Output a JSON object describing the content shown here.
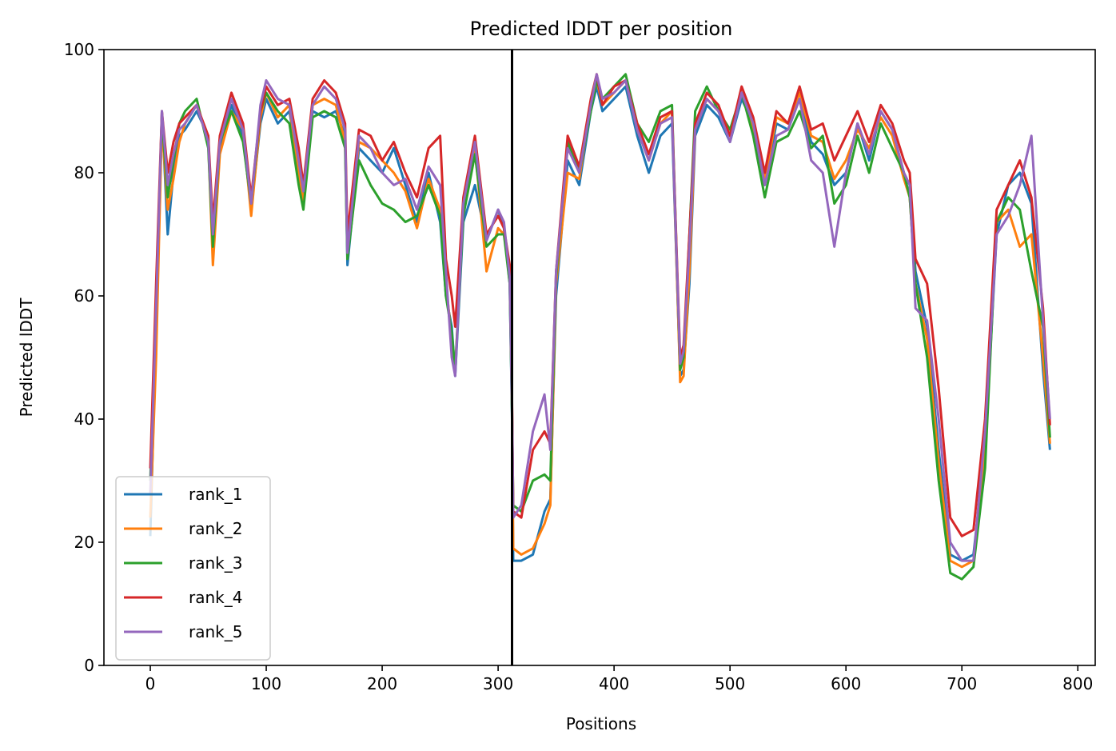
{
  "chart_data": {
    "type": "line",
    "title": "Predicted lDDT per position",
    "xlabel": "Positions",
    "ylabel": "Predicted lDDT",
    "xlim": [
      -40,
      815
    ],
    "ylim": [
      0,
      100
    ],
    "xticks": [
      0,
      100,
      200,
      300,
      400,
      500,
      600,
      700,
      800
    ],
    "yticks": [
      0,
      20,
      40,
      60,
      80,
      100
    ],
    "grid": false,
    "legend_position": "lower-left",
    "chain_break_x": 312,
    "series_colors": [
      "#1f77b4",
      "#ff7f0e",
      "#2ca02c",
      "#d62728",
      "#9467bd"
    ],
    "series": [
      {
        "name": "rank_1",
        "x": [
          0,
          5,
          10,
          15,
          20,
          25,
          30,
          40,
          50,
          54,
          60,
          70,
          80,
          87,
          95,
          100,
          110,
          120,
          128,
          132,
          140,
          150,
          160,
          168,
          170,
          180,
          190,
          200,
          210,
          220,
          230,
          240,
          250,
          255,
          260,
          263,
          270,
          280,
          290,
          300,
          305,
          310,
          312,
          313,
          320,
          330,
          340,
          345,
          350,
          360,
          370,
          380,
          385,
          390,
          400,
          410,
          420,
          430,
          440,
          450,
          457,
          460,
          465,
          470,
          480,
          490,
          500,
          510,
          520,
          530,
          540,
          550,
          560,
          570,
          580,
          590,
          600,
          610,
          620,
          630,
          640,
          650,
          655,
          660,
          670,
          680,
          690,
          700,
          710,
          720,
          730,
          740,
          750,
          760,
          770,
          776
        ],
        "values": [
          21,
          55,
          90,
          70,
          80,
          86,
          87,
          90,
          86,
          68,
          84,
          91,
          86,
          74,
          88,
          92,
          88,
          90,
          81,
          76,
          90,
          89,
          90,
          86,
          65,
          84,
          82,
          80,
          84,
          78,
          72,
          80,
          72,
          60,
          55,
          47,
          72,
          78,
          69,
          74,
          71,
          62,
          40,
          17,
          17,
          18,
          25,
          27,
          60,
          82,
          78,
          90,
          94,
          90,
          92,
          94,
          86,
          80,
          86,
          88,
          47,
          48,
          62,
          86,
          91,
          89,
          85,
          92,
          88,
          78,
          88,
          87,
          92,
          85,
          83,
          78,
          80,
          88,
          82,
          90,
          87,
          80,
          78,
          64,
          55,
          35,
          18,
          17,
          18,
          35,
          70,
          78,
          80,
          75,
          48,
          35
        ]
      },
      {
        "name": "rank_2",
        "x": [
          0,
          5,
          10,
          15,
          20,
          25,
          30,
          40,
          50,
          54,
          60,
          70,
          80,
          87,
          95,
          100,
          110,
          120,
          128,
          132,
          140,
          150,
          160,
          168,
          170,
          180,
          190,
          200,
          210,
          220,
          230,
          240,
          250,
          255,
          260,
          263,
          270,
          280,
          290,
          300,
          305,
          310,
          312,
          313,
          320,
          330,
          340,
          345,
          350,
          360,
          370,
          380,
          385,
          390,
          400,
          410,
          420,
          430,
          440,
          450,
          457,
          460,
          465,
          470,
          480,
          490,
          500,
          510,
          520,
          530,
          540,
          550,
          560,
          570,
          580,
          590,
          600,
          610,
          620,
          630,
          640,
          650,
          655,
          660,
          670,
          680,
          690,
          700,
          710,
          720,
          730,
          740,
          750,
          760,
          770,
          776
        ],
        "values": [
          24,
          50,
          88,
          74,
          79,
          85,
          88,
          91,
          85,
          65,
          83,
          90,
          87,
          73,
          89,
          93,
          89,
          91,
          80,
          75,
          91,
          92,
          91,
          85,
          68,
          85,
          84,
          82,
          80,
          77,
          71,
          79,
          74,
          62,
          53,
          48,
          74,
          84,
          64,
          71,
          70,
          64,
          42,
          19,
          18,
          19,
          23,
          26,
          62,
          80,
          79,
          91,
          95,
          91,
          93,
          95,
          87,
          82,
          88,
          90,
          46,
          47,
          64,
          87,
          92,
          90,
          86,
          93,
          87,
          79,
          89,
          88,
          93,
          86,
          85,
          79,
          82,
          87,
          84,
          89,
          86,
          79,
          76,
          62,
          53,
          33,
          17,
          16,
          17,
          34,
          72,
          74,
          68,
          70,
          50,
          36
        ]
      },
      {
        "name": "rank_3",
        "x": [
          0,
          5,
          10,
          15,
          20,
          25,
          30,
          40,
          50,
          54,
          60,
          70,
          80,
          87,
          95,
          100,
          110,
          120,
          128,
          132,
          140,
          150,
          160,
          168,
          170,
          180,
          190,
          200,
          210,
          220,
          230,
          240,
          250,
          255,
          260,
          263,
          270,
          280,
          290,
          300,
          305,
          310,
          312,
          313,
          320,
          330,
          340,
          345,
          350,
          360,
          370,
          380,
          385,
          390,
          400,
          410,
          420,
          430,
          440,
          450,
          457,
          460,
          465,
          470,
          480,
          490,
          500,
          510,
          520,
          530,
          540,
          550,
          560,
          570,
          580,
          590,
          600,
          610,
          620,
          630,
          640,
          650,
          655,
          660,
          670,
          680,
          690,
          700,
          710,
          720,
          730,
          740,
          750,
          760,
          770,
          776
        ],
        "values": [
          30,
          60,
          89,
          76,
          82,
          88,
          90,
          92,
          84,
          68,
          85,
          90,
          85,
          75,
          90,
          93,
          90,
          88,
          78,
          74,
          89,
          90,
          89,
          84,
          66,
          82,
          78,
          75,
          74,
          72,
          73,
          78,
          73,
          60,
          54,
          48,
          73,
          83,
          68,
          70,
          70,
          62,
          41,
          26,
          25,
          30,
          31,
          30,
          63,
          85,
          80,
          90,
          95,
          92,
          94,
          96,
          88,
          85,
          90,
          91,
          48,
          50,
          70,
          90,
          94,
          90,
          87,
          93,
          86,
          76,
          85,
          86,
          90,
          84,
          86,
          75,
          78,
          86,
          80,
          88,
          84,
          80,
          76,
          62,
          50,
          30,
          15,
          14,
          16,
          32,
          72,
          76,
          74,
          64,
          55,
          37
        ]
      },
      {
        "name": "rank_4",
        "x": [
          0,
          5,
          10,
          15,
          20,
          25,
          30,
          40,
          50,
          54,
          60,
          70,
          80,
          87,
          95,
          100,
          110,
          120,
          128,
          132,
          140,
          150,
          160,
          168,
          170,
          180,
          190,
          200,
          210,
          220,
          230,
          240,
          250,
          255,
          260,
          263,
          270,
          280,
          290,
          300,
          305,
          310,
          312,
          313,
          320,
          330,
          340,
          345,
          350,
          360,
          370,
          380,
          385,
          390,
          400,
          410,
          420,
          430,
          440,
          450,
          457,
          460,
          465,
          470,
          480,
          490,
          500,
          510,
          520,
          530,
          540,
          550,
          560,
          570,
          580,
          590,
          600,
          610,
          620,
          630,
          640,
          650,
          655,
          660,
          670,
          680,
          690,
          700,
          710,
          720,
          730,
          740,
          750,
          760,
          770,
          776
        ],
        "values": [
          32,
          62,
          90,
          80,
          85,
          88,
          89,
          91,
          86,
          72,
          86,
          93,
          88,
          76,
          90,
          94,
          91,
          92,
          84,
          78,
          92,
          95,
          93,
          88,
          70,
          87,
          86,
          82,
          85,
          80,
          76,
          84,
          86,
          66,
          60,
          55,
          76,
          86,
          70,
          73,
          71,
          65,
          43,
          25,
          24,
          35,
          38,
          36,
          64,
          86,
          81,
          92,
          96,
          91,
          94,
          95,
          88,
          83,
          89,
          90,
          50,
          52,
          70,
          88,
          93,
          91,
          86,
          94,
          89,
          80,
          90,
          88,
          94,
          87,
          88,
          82,
          86,
          90,
          85,
          91,
          88,
          82,
          80,
          66,
          62,
          45,
          24,
          21,
          22,
          40,
          74,
          78,
          82,
          76,
          58,
          39
        ]
      },
      {
        "name": "rank_5",
        "x": [
          0,
          5,
          10,
          15,
          20,
          25,
          30,
          40,
          50,
          54,
          60,
          70,
          80,
          87,
          95,
          100,
          110,
          120,
          128,
          132,
          140,
          150,
          160,
          168,
          170,
          180,
          190,
          200,
          210,
          220,
          230,
          240,
          250,
          255,
          260,
          263,
          270,
          280,
          290,
          300,
          305,
          310,
          312,
          313,
          320,
          330,
          340,
          345,
          350,
          360,
          370,
          380,
          385,
          390,
          400,
          410,
          420,
          430,
          440,
          450,
          457,
          460,
          465,
          470,
          480,
          490,
          500,
          510,
          520,
          530,
          540,
          550,
          560,
          570,
          580,
          590,
          600,
          610,
          620,
          630,
          640,
          650,
          655,
          660,
          670,
          680,
          690,
          700,
          710,
          720,
          730,
          740,
          750,
          760,
          770,
          776
        ],
        "values": [
          28,
          58,
          90,
          78,
          83,
          87,
          88,
          91,
          85,
          70,
          85,
          92,
          87,
          75,
          91,
          95,
          92,
          91,
          82,
          77,
          91,
          94,
          92,
          87,
          67,
          86,
          84,
          80,
          78,
          79,
          74,
          81,
          78,
          64,
          50,
          47,
          75,
          85,
          69,
          74,
          72,
          63,
          42,
          24,
          26,
          38,
          44,
          35,
          64,
          84,
          80,
          91,
          96,
          92,
          93,
          95,
          87,
          82,
          88,
          89,
          49,
          51,
          68,
          87,
          92,
          90,
          85,
          93,
          88,
          78,
          86,
          87,
          92,
          82,
          80,
          68,
          80,
          88,
          83,
          90,
          87,
          80,
          78,
          58,
          56,
          40,
          20,
          17,
          17,
          38,
          70,
          73,
          78,
          86,
          56,
          40
        ]
      }
    ]
  }
}
